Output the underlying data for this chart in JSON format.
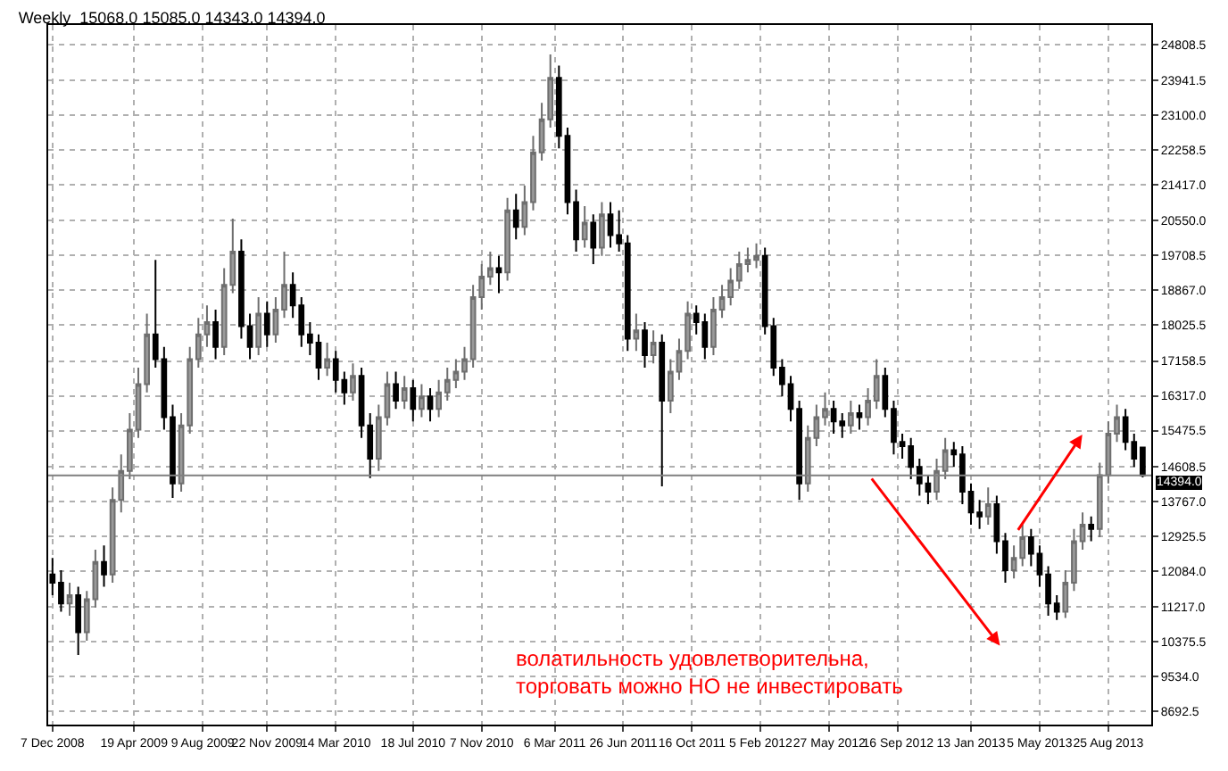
{
  "chart_data": {
    "type": "candlestick",
    "title": "Weekly  15068.0 15085.0 14343.0 14394.0",
    "x": [
      "2008-12-07",
      "2008-12-21",
      "2009-01-04",
      "2009-01-18",
      "2009-02-01",
      "2009-02-15",
      "2009-03-01",
      "2009-03-15",
      "2009-03-29",
      "2009-04-12",
      "2009-04-26",
      "2009-05-10",
      "2009-05-24",
      "2009-06-07",
      "2009-06-21",
      "2009-07-05",
      "2009-07-19",
      "2009-08-02",
      "2009-08-16",
      "2009-08-30",
      "2009-09-13",
      "2009-09-27",
      "2009-10-11",
      "2009-10-25",
      "2009-11-08",
      "2009-11-22",
      "2009-12-06",
      "2009-12-20",
      "2010-01-03",
      "2010-01-17",
      "2010-01-31",
      "2010-02-14",
      "2010-02-28",
      "2010-03-14",
      "2010-03-28",
      "2010-04-11",
      "2010-04-25",
      "2010-05-09",
      "2010-05-23",
      "2010-06-06",
      "2010-06-20",
      "2010-07-04",
      "2010-07-18",
      "2010-08-01",
      "2010-08-15",
      "2010-08-29",
      "2010-09-12",
      "2010-09-26",
      "2010-10-10",
      "2010-10-24",
      "2010-11-07",
      "2010-11-21",
      "2010-12-05",
      "2010-12-19",
      "2011-01-02",
      "2011-01-16",
      "2011-01-30",
      "2011-02-13",
      "2011-02-27",
      "2011-03-13",
      "2011-03-27",
      "2011-04-10",
      "2011-04-24",
      "2011-05-08",
      "2011-05-22",
      "2011-06-05",
      "2011-06-19",
      "2011-07-03",
      "2011-07-17",
      "2011-07-31",
      "2011-08-14",
      "2011-08-28",
      "2011-09-11",
      "2011-09-25",
      "2011-10-09",
      "2011-10-23",
      "2011-11-06",
      "2011-11-20",
      "2011-12-04",
      "2011-12-18",
      "2012-01-01",
      "2012-01-15",
      "2012-01-29",
      "2012-02-12",
      "2012-02-26",
      "2012-03-11",
      "2012-03-25",
      "2012-04-08",
      "2012-04-22",
      "2012-05-06",
      "2012-05-20",
      "2012-06-03",
      "2012-06-17",
      "2012-07-01",
      "2012-07-15",
      "2012-07-29",
      "2012-08-12",
      "2012-08-26",
      "2012-09-09",
      "2012-09-23",
      "2012-10-07",
      "2012-10-21",
      "2012-11-04",
      "2012-11-18",
      "2012-12-02",
      "2012-12-16",
      "2012-12-30",
      "2013-01-13",
      "2013-01-27",
      "2013-02-10",
      "2013-02-24",
      "2013-03-10",
      "2013-03-24",
      "2013-04-07",
      "2013-04-21",
      "2013-05-05",
      "2013-05-19",
      "2013-06-02",
      "2013-06-16",
      "2013-06-30",
      "2013-07-14",
      "2013-07-28",
      "2013-08-11",
      "2013-08-25",
      "2013-09-08",
      "2013-09-22",
      "2013-10-06",
      "2013-10-20"
    ],
    "ohlc": [
      [
        12000,
        12400,
        11500,
        11800
      ],
      [
        11800,
        12100,
        11100,
        11300
      ],
      [
        11300,
        11800,
        11000,
        11500
      ],
      [
        11500,
        11700,
        10050,
        10600
      ],
      [
        10600,
        11600,
        10400,
        11400
      ],
      [
        11400,
        12600,
        11200,
        12300
      ],
      [
        12300,
        12700,
        11700,
        12000
      ],
      [
        12000,
        14100,
        11800,
        13800
      ],
      [
        13800,
        14900,
        13500,
        14500
      ],
      [
        14500,
        15900,
        14300,
        15500
      ],
      [
        15500,
        17000,
        15300,
        16600
      ],
      [
        16600,
        18300,
        16400,
        17800
      ],
      [
        17800,
        19600,
        17000,
        17200
      ],
      [
        17200,
        17500,
        15500,
        15800
      ],
      [
        15800,
        16100,
        13850,
        14200
      ],
      [
        14200,
        15900,
        14000,
        15600
      ],
      [
        15600,
        17500,
        15400,
        17200
      ],
      [
        17200,
        18200,
        17000,
        17800
      ],
      [
        17800,
        18500,
        17500,
        18100
      ],
      [
        18100,
        18400,
        17200,
        17500
      ],
      [
        17500,
        19400,
        17300,
        19000
      ],
      [
        19000,
        20600,
        18800,
        19800
      ],
      [
        19800,
        20100,
        17700,
        18000
      ],
      [
        18000,
        18300,
        17200,
        17500
      ],
      [
        17500,
        18700,
        17300,
        18300
      ],
      [
        18300,
        18600,
        17500,
        17800
      ],
      [
        17800,
        18700,
        17600,
        18400
      ],
      [
        18400,
        19800,
        18200,
        19000
      ],
      [
        19000,
        19300,
        18200,
        18500
      ],
      [
        18500,
        18700,
        17500,
        17800
      ],
      [
        17800,
        18100,
        17300,
        17600
      ],
      [
        17600,
        17800,
        16700,
        17000
      ],
      [
        17000,
        17600,
        16800,
        17200
      ],
      [
        17200,
        17400,
        16400,
        16700
      ],
      [
        16700,
        16900,
        16100,
        16400
      ],
      [
        16400,
        17100,
        16200,
        16800
      ],
      [
        16800,
        17000,
        15300,
        15600
      ],
      [
        15600,
        15900,
        14330,
        14800
      ],
      [
        14800,
        16100,
        14500,
        15800
      ],
      [
        15800,
        16900,
        15600,
        16600
      ],
      [
        16600,
        16900,
        16000,
        16200
      ],
      [
        16200,
        16800,
        16000,
        16500
      ],
      [
        16500,
        16700,
        15700,
        16000
      ],
      [
        16000,
        16600,
        15800,
        16300
      ],
      [
        16300,
        16500,
        15700,
        16000
      ],
      [
        16000,
        16700,
        15800,
        16400
      ],
      [
        16400,
        17000,
        16200,
        16700
      ],
      [
        16700,
        17200,
        16500,
        16900
      ],
      [
        16900,
        17500,
        16700,
        17200
      ],
      [
        17200,
        19000,
        17000,
        18700
      ],
      [
        18700,
        19500,
        18400,
        19200
      ],
      [
        19200,
        19800,
        19000,
        19400
      ],
      [
        19400,
        19700,
        18800,
        19300
      ],
      [
        19300,
        21100,
        19100,
        20800
      ],
      [
        20800,
        21200,
        20100,
        20400
      ],
      [
        20400,
        21400,
        20200,
        21000
      ],
      [
        21000,
        22600,
        20800,
        22200
      ],
      [
        22200,
        23400,
        22000,
        23000
      ],
      [
        23000,
        24570,
        22800,
        24000
      ],
      [
        24000,
        24300,
        22300,
        22600
      ],
      [
        22600,
        22800,
        20700,
        21000
      ],
      [
        21000,
        21300,
        19800,
        20100
      ],
      [
        20100,
        20900,
        19900,
        20500
      ],
      [
        20500,
        20700,
        19500,
        19900
      ],
      [
        19900,
        21000,
        19700,
        20700
      ],
      [
        20700,
        21000,
        19900,
        20200
      ],
      [
        20200,
        20800,
        19800,
        20000
      ],
      [
        20000,
        20200,
        17400,
        17700
      ],
      [
        17700,
        18300,
        17400,
        17900
      ],
      [
        17900,
        18100,
        17000,
        17300
      ],
      [
        17300,
        17900,
        17100,
        17600
      ],
      [
        17600,
        17800,
        14130,
        16200
      ],
      [
        16200,
        17200,
        15900,
        16900
      ],
      [
        16900,
        17700,
        16700,
        17400
      ],
      [
        17400,
        18600,
        17200,
        18300
      ],
      [
        18300,
        18500,
        17800,
        18100
      ],
      [
        18100,
        18300,
        17200,
        17500
      ],
      [
        17500,
        18700,
        17300,
        18400
      ],
      [
        18400,
        19000,
        18200,
        18700
      ],
      [
        18700,
        19400,
        18500,
        19100
      ],
      [
        19100,
        19800,
        18900,
        19500
      ],
      [
        19500,
        19900,
        19300,
        19600
      ],
      [
        19600,
        20000,
        19400,
        19700
      ],
      [
        19700,
        19900,
        17800,
        18000
      ],
      [
        18000,
        18200,
        16800,
        17000
      ],
      [
        17000,
        17200,
        16300,
        16600
      ],
      [
        16600,
        16800,
        15700,
        16000
      ],
      [
        16000,
        16200,
        13800,
        14200
      ],
      [
        14200,
        15600,
        14000,
        15300
      ],
      [
        15300,
        16100,
        15100,
        15800
      ],
      [
        15800,
        16400,
        15600,
        16000
      ],
      [
        16000,
        16200,
        15400,
        15700
      ],
      [
        15700,
        15900,
        15300,
        15600
      ],
      [
        15600,
        16200,
        15400,
        15900
      ],
      [
        15900,
        16100,
        15500,
        15800
      ],
      [
        15800,
        16500,
        15600,
        16200
      ],
      [
        16200,
        17200,
        16000,
        16800
      ],
      [
        16800,
        17000,
        15800,
        16000
      ],
      [
        16000,
        16200,
        14900,
        15200
      ],
      [
        15200,
        15400,
        14800,
        15100
      ],
      [
        15100,
        15300,
        14300,
        14600
      ],
      [
        14600,
        14800,
        13900,
        14200
      ],
      [
        14200,
        14400,
        13700,
        14000
      ],
      [
        14000,
        14800,
        13800,
        14500
      ],
      [
        14500,
        15300,
        14300,
        15000
      ],
      [
        15000,
        15200,
        14600,
        14900
      ],
      [
        14900,
        15100,
        13700,
        14000
      ],
      [
        14000,
        14200,
        13200,
        13500
      ],
      [
        13500,
        13800,
        13100,
        13400
      ],
      [
        13400,
        14100,
        13200,
        13700
      ],
      [
        13700,
        13900,
        12500,
        12800
      ],
      [
        12800,
        13000,
        11800,
        12100
      ],
      [
        12100,
        12700,
        11900,
        12400
      ],
      [
        12400,
        13200,
        12200,
        12900
      ],
      [
        12900,
        13100,
        12200,
        12500
      ],
      [
        12500,
        12700,
        11700,
        12000
      ],
      [
        12000,
        12200,
        11000,
        11300
      ],
      [
        11300,
        11500,
        10900,
        11100
      ],
      [
        11100,
        12100,
        10950,
        11800
      ],
      [
        11800,
        13100,
        11600,
        12800
      ],
      [
        12800,
        13500,
        12600,
        13200
      ],
      [
        13200,
        13400,
        12800,
        13100
      ],
      [
        13100,
        14700,
        12900,
        14400
      ],
      [
        14400,
        15700,
        14200,
        15400
      ],
      [
        15400,
        16100,
        15200,
        15800
      ],
      [
        15800,
        16000,
        15000,
        15200
      ],
      [
        15200,
        15400,
        14600,
        14800
      ],
      [
        15068,
        15085,
        14343,
        14394
      ]
    ],
    "xlim": [
      "2008-11-30",
      "2013-11-03"
    ],
    "xticks": [
      {
        "value": "2008-12-07",
        "label": "7 Dec 2008"
      },
      {
        "value": "2009-04-19",
        "label": "19 Apr 2009"
      },
      {
        "value": "2009-08-09",
        "label": "9 Aug 2009"
      },
      {
        "value": "2009-11-22",
        "label": "22 Nov 2009"
      },
      {
        "value": "2010-03-14",
        "label": "14 Mar 2010"
      },
      {
        "value": "2010-07-18",
        "label": "18 Jul 2010"
      },
      {
        "value": "2010-11-07",
        "label": "7 Nov 2010"
      },
      {
        "value": "2011-03-06",
        "label": "6 Mar 2011"
      },
      {
        "value": "2011-06-26",
        "label": "26 Jun 2011"
      },
      {
        "value": "2011-10-16",
        "label": "16 Oct 2011"
      },
      {
        "value": "2012-02-05",
        "label": "5 Feb 2012"
      },
      {
        "value": "2012-05-27",
        "label": "27 May 2012"
      },
      {
        "value": "2012-09-16",
        "label": "16 Sep 2012"
      },
      {
        "value": "2013-01-13",
        "label": "13 Jan 2013"
      },
      {
        "value": "2013-05-05",
        "label": "5 May 2013"
      },
      {
        "value": "2013-08-25",
        "label": "25 Aug 2013"
      }
    ],
    "ylim": [
      8370,
      25280
    ],
    "yticks": [
      {
        "value": 8692.5,
        "label": "8692.5"
      },
      {
        "value": 9534,
        "label": "9534.0"
      },
      {
        "value": 10375.5,
        "label": "10375.5"
      },
      {
        "value": 11217,
        "label": "11217.0"
      },
      {
        "value": 12084,
        "label": "12084.0"
      },
      {
        "value": 12925.5,
        "label": "12925.5"
      },
      {
        "value": 13767,
        "label": "13767.0"
      },
      {
        "value": 14608.5,
        "label": "14608.5"
      },
      {
        "value": 15475.5,
        "label": "15475.5"
      },
      {
        "value": 16317,
        "label": "16317.0"
      },
      {
        "value": 17158.5,
        "label": "17158.5"
      },
      {
        "value": 18025.5,
        "label": "18025.5"
      },
      {
        "value": 18867,
        "label": "18867.0"
      },
      {
        "value": 19708.5,
        "label": "19708.5"
      },
      {
        "value": 20550,
        "label": "20550.0"
      },
      {
        "value": 21417,
        "label": "21417.0"
      },
      {
        "value": 22258.5,
        "label": "22258.5"
      },
      {
        "value": 23100,
        "label": "23100.0"
      },
      {
        "value": 23941.5,
        "label": "23941.5"
      },
      {
        "value": 24808.5,
        "label": "24808.5"
      }
    ],
    "ref_lines": [
      {
        "axis": "y",
        "value": 14394,
        "label": "14394.0",
        "color": "#808080"
      }
    ],
    "annotations": [
      "волатильность удовлетворительна,\nторговать можно НО не инвестировать"
    ],
    "grid": true,
    "legend": false
  }
}
